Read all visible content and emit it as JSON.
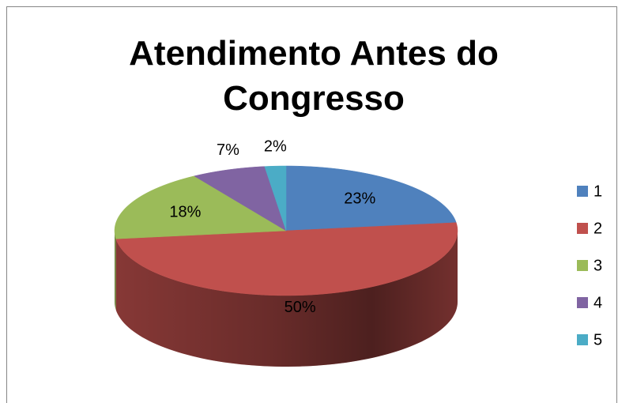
{
  "chart_data": {
    "type": "pie",
    "title": "Atendimento Antes do Congresso",
    "categories": [
      "1",
      "2",
      "3",
      "4",
      "5"
    ],
    "values": [
      23,
      50,
      18,
      7,
      2
    ],
    "value_labels": [
      "23%",
      "50%",
      "18%",
      "7%",
      "2%"
    ],
    "colors": [
      "#4f81bd",
      "#c0504d",
      "#9bbb59",
      "#8064a2",
      "#4bacc6"
    ],
    "legend": "right"
  }
}
